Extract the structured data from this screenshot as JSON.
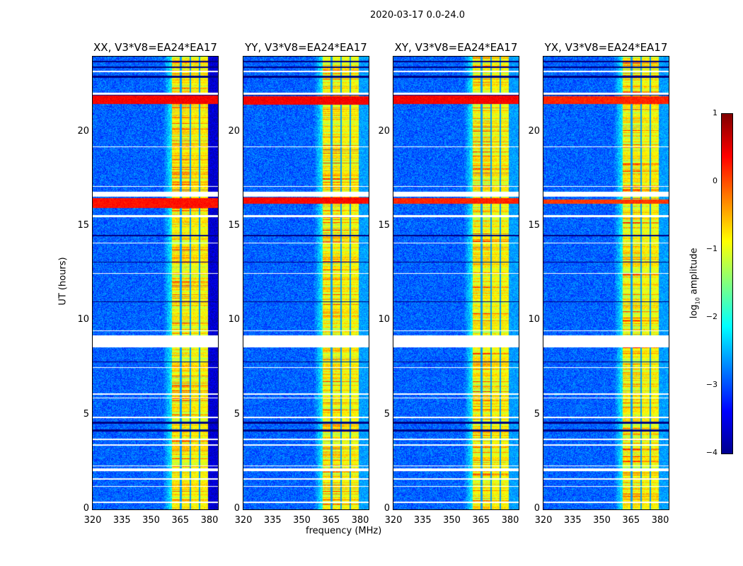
{
  "chart_data": {
    "type": "heatmap",
    "title": "2020-03-17 0.0-24.0",
    "xlabel": "frequency (MHz)",
    "ylabel": "UT (hours)",
    "xlim": [
      320,
      384.5
    ],
    "ylim": [
      0,
      24
    ],
    "xticks": [
      "320",
      "335",
      "350",
      "365",
      "380"
    ],
    "yticks": [
      "0",
      "5",
      "10",
      "15",
      "20"
    ],
    "panels": [
      {
        "title": "XX, V3*V8=EA24*EA17",
        "broadband_rfi": [
          [
            21.5,
            21.95,
            0.4
          ],
          [
            16.0,
            16.5,
            0.3
          ]
        ],
        "right_edge": "dark"
      },
      {
        "title": "YY, V3*V8=EA24*EA17",
        "broadband_rfi": [
          [
            21.45,
            21.9,
            0.4
          ],
          [
            16.2,
            16.55,
            0.35
          ]
        ],
        "right_edge": "blue"
      },
      {
        "title": "XY, V3*V8=EA24*EA17",
        "broadband_rfi": [
          [
            21.5,
            21.95,
            0.4
          ],
          [
            16.2,
            16.5,
            0.2
          ]
        ],
        "right_edge": "blue"
      },
      {
        "title": "YX, V3*V8=EA24*EA17",
        "broadband_rfi": [
          [
            21.5,
            21.9,
            0.2
          ],
          [
            16.2,
            16.45,
            0.1
          ]
        ],
        "right_edge": "blue"
      }
    ],
    "bright_band_segments_mhz": [
      [
        360.7,
        364.5
      ],
      [
        365.5,
        369.5
      ],
      [
        370.5,
        374.2
      ],
      [
        375.2,
        379
      ]
    ],
    "background_log_amp": -2.9,
    "band_log_amp": -0.9,
    "flagged_white_hours": [
      [
        0.35,
        0.42
      ],
      [
        1.2,
        1.27
      ],
      [
        1.6,
        1.67
      ],
      [
        2.05,
        2.2
      ],
      [
        2.3,
        2.36
      ],
      [
        3.4,
        3.46
      ],
      [
        3.7,
        3.76
      ],
      [
        4.85,
        4.92
      ],
      [
        5.9,
        5.96
      ],
      [
        6.1,
        6.16
      ],
      [
        7.5,
        7.56
      ],
      [
        8.6,
        9.25
      ],
      [
        9.45,
        9.52
      ],
      [
        12.5,
        12.56
      ],
      [
        14.1,
        14.16
      ],
      [
        15.5,
        15.6
      ],
      [
        16.6,
        16.85
      ],
      [
        17.1,
        17.16
      ],
      [
        19.2,
        19.26
      ],
      [
        22.0,
        22.1
      ],
      [
        23.2,
        23.26
      ]
    ],
    "flagged_black_hours": [
      [
        4.15,
        4.27
      ],
      [
        4.55,
        4.67
      ],
      [
        7.8,
        7.86
      ],
      [
        11.0,
        11.06
      ],
      [
        13.1,
        13.16
      ],
      [
        14.5,
        14.56
      ],
      [
        21.95,
        22.0
      ],
      [
        22.9,
        23.0
      ],
      [
        23.4,
        23.5
      ],
      [
        23.7,
        23.8
      ]
    ],
    "colorbar": {
      "label_prefix": "log",
      "label_sub": "10",
      "label_suffix": " amplitude",
      "range": [
        -4,
        1
      ],
      "ticks": [
        "1",
        "0",
        "−1",
        "−2",
        "−3",
        "−4"
      ],
      "colormap": "jet"
    }
  }
}
